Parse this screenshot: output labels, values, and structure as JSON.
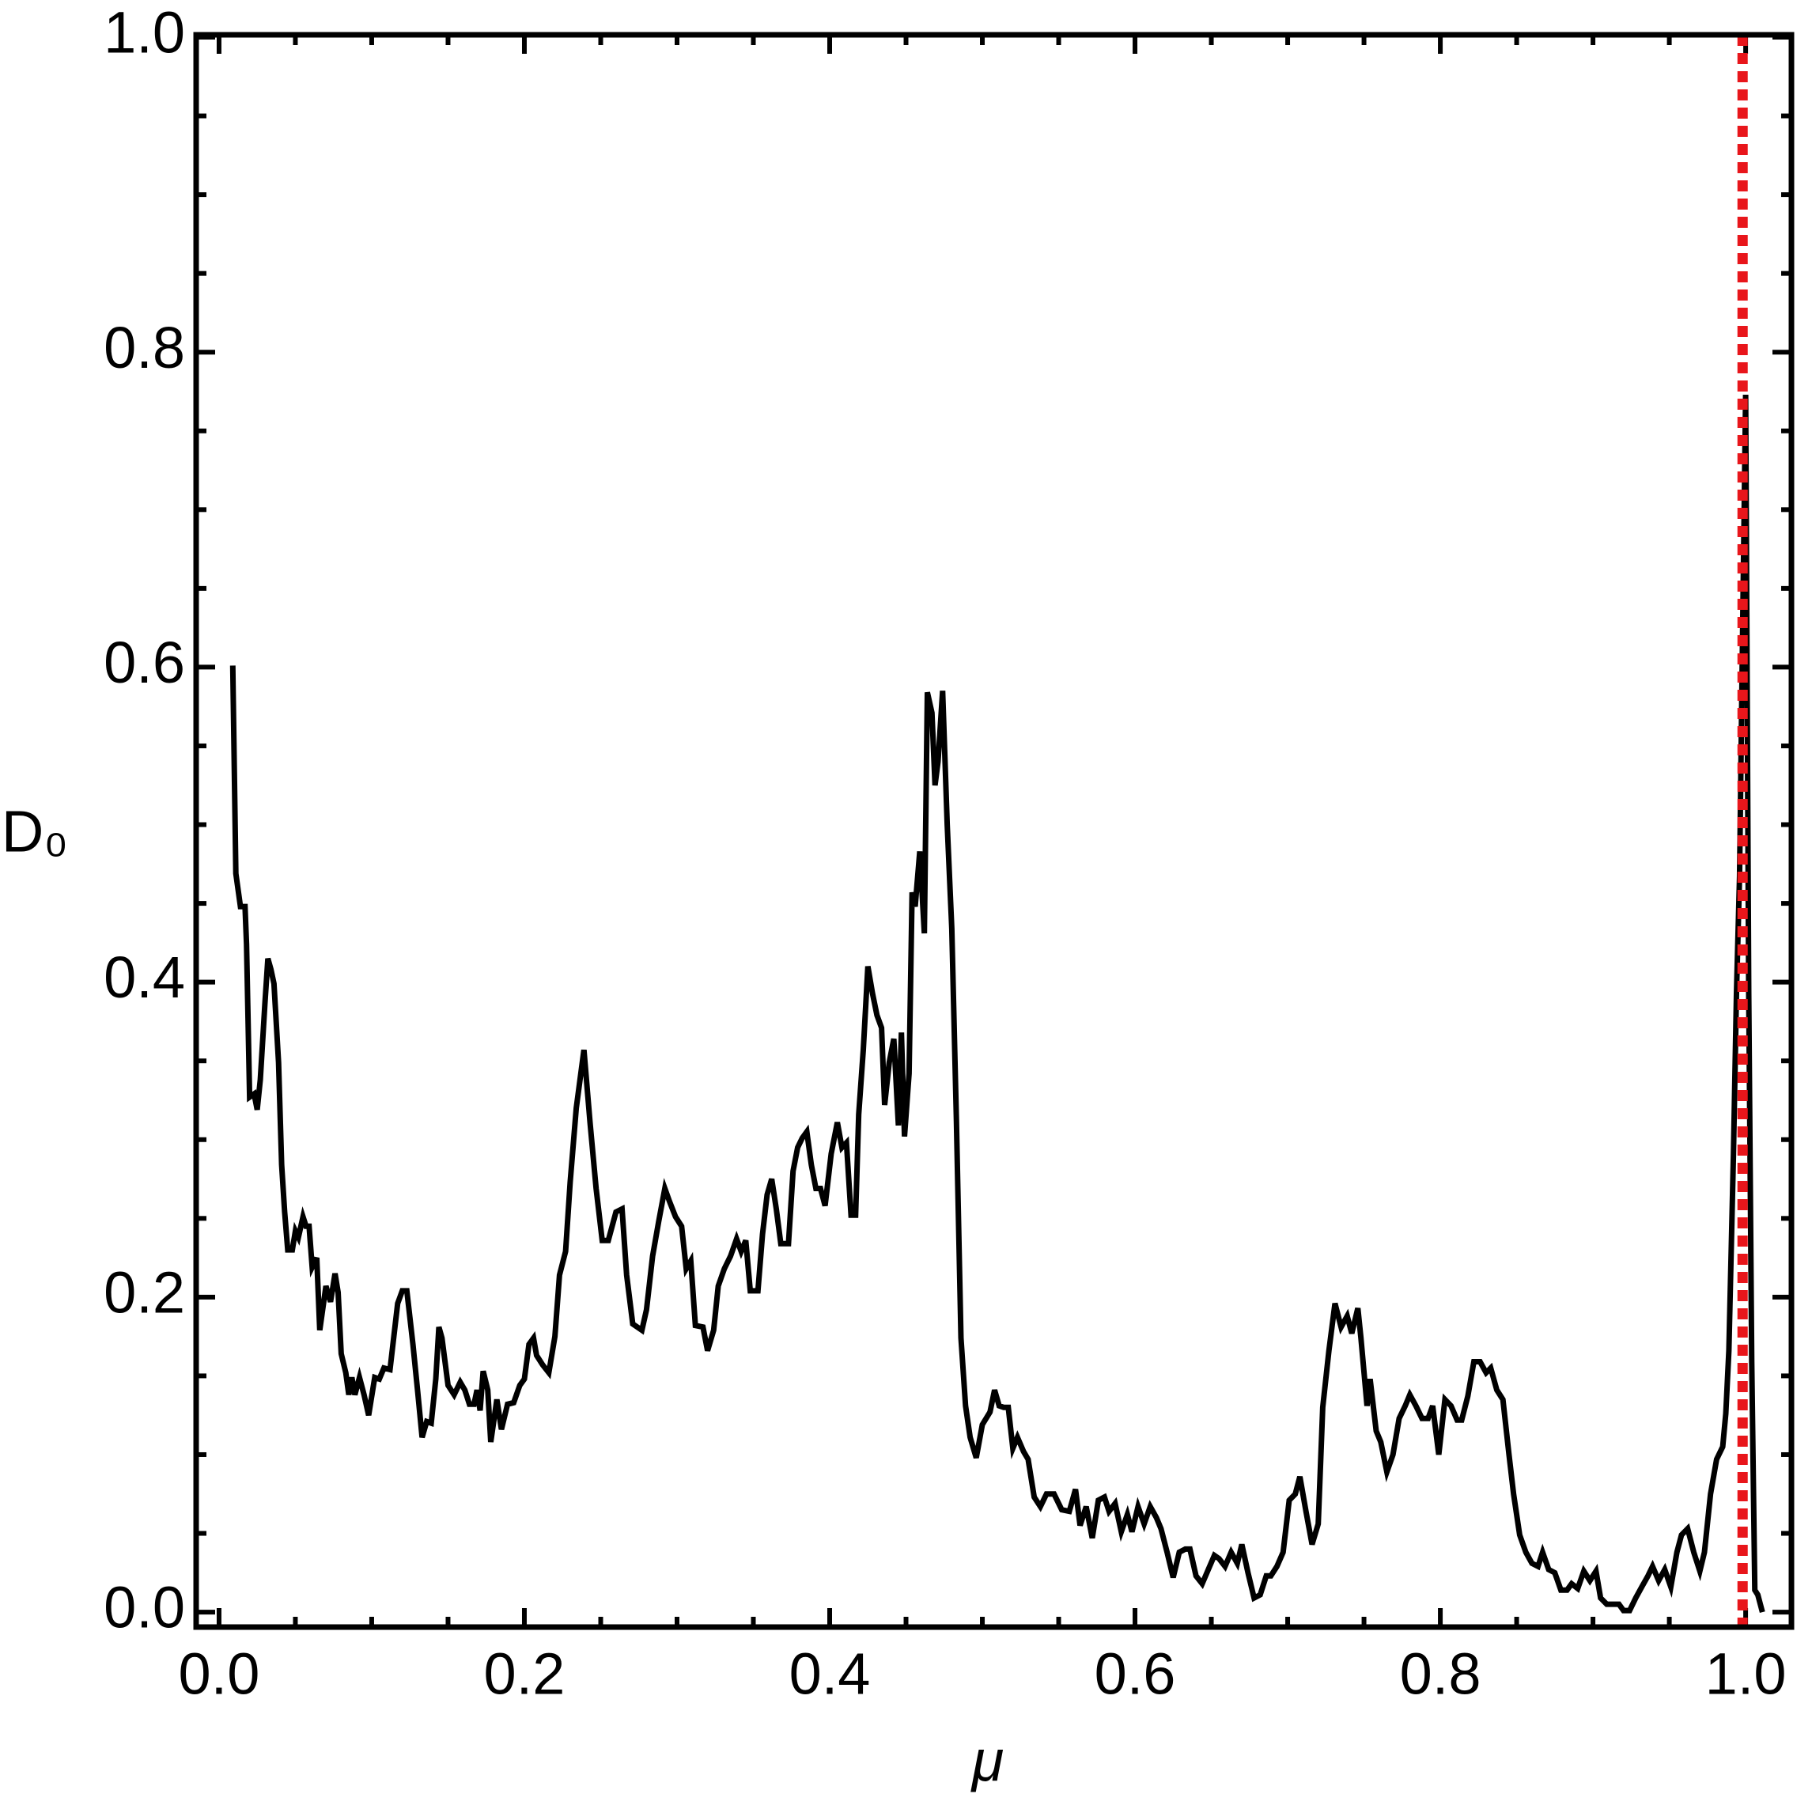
{
  "chart_data": {
    "type": "line",
    "x_label": "μ",
    "y_label": "D₀",
    "xlim": [
      -0.015,
      1.03
    ],
    "ylim": [
      -0.0095,
      1.0015
    ],
    "xticks": [
      {
        "value": 0,
        "label": "0.0"
      },
      0.2,
      0.4,
      0.6,
      0.8,
      {
        "value": 1,
        "label": "1.0"
      }
    ],
    "yticks": [
      {
        "value": 0,
        "label": "0.0"
      },
      0.2,
      0.4,
      0.6,
      0.8,
      {
        "value": 1,
        "label": "1.0"
      }
    ],
    "xminorticks": [
      0.05,
      0.1,
      0.15,
      0.25,
      0.3,
      0.35,
      0.45,
      0.5,
      0.55,
      0.65,
      0.7,
      0.75,
      0.85,
      0.9,
      0.95
    ],
    "yminorticks": [
      0.05,
      0.1,
      0.15,
      0.25,
      0.3,
      0.35,
      0.45,
      0.5,
      0.55,
      0.65,
      0.7,
      0.75,
      0.85,
      0.9,
      0.95
    ],
    "vline": {
      "x": 0.998,
      "color": "#e8161b"
    },
    "series": [
      {
        "color": "#000000",
        "x": [
          0.009,
          0.011,
          0.014,
          0.017,
          0.018,
          0.02,
          0.023,
          0.025,
          0.027,
          0.03,
          0.032,
          0.034,
          0.036,
          0.039,
          0.041,
          0.043,
          0.045,
          0.048,
          0.05,
          0.052,
          0.055,
          0.057,
          0.059,
          0.061,
          0.064,
          0.066,
          0.068,
          0.07,
          0.073,
          0.076,
          0.078,
          0.08,
          0.083,
          0.085,
          0.087,
          0.089,
          0.092,
          0.095,
          0.098,
          0.102,
          0.105,
          0.108,
          0.112,
          0.117,
          0.12,
          0.123,
          0.127,
          0.13,
          0.133,
          0.136,
          0.139,
          0.142,
          0.144,
          0.146,
          0.15,
          0.154,
          0.158,
          0.161,
          0.164,
          0.167,
          0.169,
          0.171,
          0.173,
          0.176,
          0.178,
          0.182,
          0.185,
          0.189,
          0.193,
          0.197,
          0.2,
          0.203,
          0.206,
          0.208,
          0.212,
          0.216,
          0.22,
          0.223,
          0.227,
          0.23,
          0.234,
          0.239,
          0.243,
          0.247,
          0.251,
          0.255,
          0.26,
          0.264,
          0.267,
          0.271,
          0.277,
          0.28,
          0.284,
          0.288,
          0.292,
          0.295,
          0.299,
          0.303,
          0.306,
          0.309,
          0.312,
          0.317,
          0.32,
          0.324,
          0.327,
          0.331,
          0.335,
          0.339,
          0.342,
          0.345,
          0.348,
          0.353,
          0.356,
          0.359,
          0.362,
          0.365,
          0.368,
          0.373,
          0.376,
          0.379,
          0.382,
          0.385,
          0.388,
          0.391,
          0.394,
          0.397,
          0.401,
          0.405,
          0.408,
          0.411,
          0.414,
          0.417,
          0.419,
          0.422,
          0.425,
          0.428,
          0.431,
          0.434,
          0.436,
          0.439,
          0.442,
          0.445,
          0.447,
          0.449,
          0.452,
          0.454,
          0.456,
          0.459,
          0.462,
          0.464,
          0.467,
          0.469,
          0.471,
          0.474,
          0.477,
          0.48,
          0.483,
          0.486,
          0.489,
          0.492,
          0.496,
          0.5,
          0.505,
          0.508,
          0.511,
          0.514,
          0.517,
          0.52,
          0.523,
          0.527,
          0.53,
          0.534,
          0.538,
          0.542,
          0.547,
          0.552,
          0.557,
          0.561,
          0.564,
          0.568,
          0.572,
          0.576,
          0.58,
          0.583,
          0.587,
          0.591,
          0.595,
          0.598,
          0.602,
          0.606,
          0.61,
          0.614,
          0.617,
          0.621,
          0.625,
          0.629,
          0.633,
          0.636,
          0.64,
          0.644,
          0.648,
          0.652,
          0.655,
          0.659,
          0.663,
          0.667,
          0.67,
          0.674,
          0.678,
          0.682,
          0.686,
          0.689,
          0.693,
          0.697,
          0.701,
          0.705,
          0.708,
          0.712,
          0.716,
          0.72,
          0.723,
          0.727,
          0.731,
          0.735,
          0.739,
          0.742,
          0.746,
          0.748,
          0.752,
          0.754,
          0.758,
          0.761,
          0.765,
          0.769,
          0.773,
          0.777,
          0.78,
          0.784,
          0.788,
          0.792,
          0.795,
          0.799,
          0.803,
          0.807,
          0.811,
          0.814,
          0.818,
          0.822,
          0.826,
          0.83,
          0.833,
          0.837,
          0.841,
          0.845,
          0.848,
          0.852,
          0.856,
          0.86,
          0.864,
          0.867,
          0.871,
          0.875,
          0.879,
          0.883,
          0.886,
          0.89,
          0.894,
          0.898,
          0.902,
          0.905,
          0.909,
          0.917,
          0.92,
          0.924,
          0.928,
          0.932,
          0.936,
          0.939,
          0.943,
          0.947,
          0.951,
          0.955,
          0.958,
          0.962,
          0.966,
          0.97,
          0.973,
          0.977,
          0.981,
          0.985,
          0.987,
          0.989,
          0.992,
          0.994,
          0.996,
          0.998,
          1.0,
          1.002,
          1.004,
          1.006,
          1.008,
          1.011
        ],
        "values": [
          0.601,
          0.469,
          0.448,
          0.448,
          0.424,
          0.327,
          0.329,
          0.319,
          0.338,
          0.386,
          0.415,
          0.408,
          0.399,
          0.349,
          0.284,
          0.254,
          0.23,
          0.23,
          0.242,
          0.238,
          0.251,
          0.245,
          0.245,
          0.219,
          0.225,
          0.179,
          0.193,
          0.207,
          0.197,
          0.215,
          0.203,
          0.164,
          0.152,
          0.138,
          0.149,
          0.138,
          0.149,
          0.138,
          0.125,
          0.149,
          0.148,
          0.155,
          0.154,
          0.196,
          0.204,
          0.204,
          0.17,
          0.141,
          0.111,
          0.121,
          0.12,
          0.148,
          0.181,
          0.174,
          0.144,
          0.138,
          0.146,
          0.141,
          0.132,
          0.132,
          0.141,
          0.128,
          0.153,
          0.141,
          0.108,
          0.135,
          0.116,
          0.132,
          0.133,
          0.144,
          0.148,
          0.17,
          0.174,
          0.163,
          0.157,
          0.152,
          0.175,
          0.214,
          0.229,
          0.273,
          0.32,
          0.357,
          0.311,
          0.269,
          0.236,
          0.236,
          0.254,
          0.256,
          0.214,
          0.183,
          0.179,
          0.192,
          0.226,
          0.248,
          0.269,
          0.261,
          0.251,
          0.245,
          0.218,
          0.223,
          0.182,
          0.181,
          0.166,
          0.179,
          0.207,
          0.218,
          0.226,
          0.237,
          0.229,
          0.236,
          0.204,
          0.204,
          0.24,
          0.265,
          0.275,
          0.256,
          0.234,
          0.234,
          0.28,
          0.295,
          0.301,
          0.305,
          0.284,
          0.269,
          0.269,
          0.258,
          0.291,
          0.311,
          0.295,
          0.298,
          0.252,
          0.252,
          0.316,
          0.357,
          0.41,
          0.393,
          0.379,
          0.371,
          0.322,
          0.349,
          0.364,
          0.309,
          0.368,
          0.302,
          0.342,
          0.457,
          0.448,
          0.483,
          0.431,
          0.584,
          0.571,
          0.525,
          0.54,
          0.585,
          0.5,
          0.434,
          0.313,
          0.174,
          0.131,
          0.111,
          0.098,
          0.119,
          0.127,
          0.141,
          0.131,
          0.13,
          0.13,
          0.104,
          0.111,
          0.102,
          0.097,
          0.073,
          0.067,
          0.075,
          0.075,
          0.065,
          0.064,
          0.078,
          0.055,
          0.067,
          0.047,
          0.071,
          0.073,
          0.064,
          0.069,
          0.051,
          0.062,
          0.051,
          0.067,
          0.056,
          0.067,
          0.06,
          0.053,
          0.038,
          0.022,
          0.038,
          0.04,
          0.04,
          0.023,
          0.018,
          0.027,
          0.036,
          0.034,
          0.029,
          0.038,
          0.031,
          0.043,
          0.025,
          0.009,
          0.011,
          0.023,
          0.023,
          0.029,
          0.038,
          0.071,
          0.075,
          0.086,
          0.064,
          0.043,
          0.056,
          0.13,
          0.166,
          0.196,
          0.181,
          0.188,
          0.177,
          0.193,
          0.174,
          0.131,
          0.148,
          0.115,
          0.108,
          0.089,
          0.1,
          0.123,
          0.131,
          0.138,
          0.131,
          0.123,
          0.123,
          0.131,
          0.1,
          0.135,
          0.131,
          0.122,
          0.122,
          0.137,
          0.159,
          0.159,
          0.152,
          0.155,
          0.141,
          0.135,
          0.1,
          0.075,
          0.049,
          0.038,
          0.031,
          0.029,
          0.038,
          0.027,
          0.025,
          0.014,
          0.014,
          0.018,
          0.015,
          0.026,
          0.02,
          0.026,
          0.009,
          0.005,
          0.005,
          0.001,
          0.001,
          0.009,
          0.016,
          0.023,
          0.029,
          0.02,
          0.027,
          0.016,
          0.038,
          0.049,
          0.053,
          0.038,
          0.026,
          0.038,
          0.075,
          0.097,
          0.105,
          0.126,
          0.166,
          0.291,
          0.393,
          0.467,
          0.62,
          0.773,
          0.393,
          0.159,
          0.014,
          0.011,
          0.0
        ]
      }
    ]
  }
}
